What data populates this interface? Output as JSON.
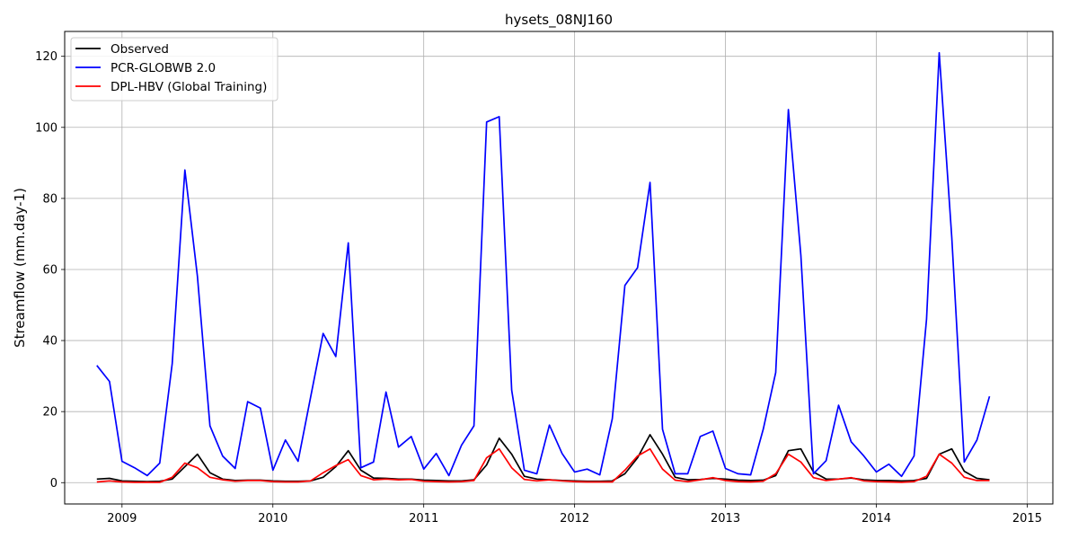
{
  "chart_data": {
    "type": "line",
    "title": "hysets_08NJ160",
    "xlabel": "",
    "ylabel": "Streamflow (mm.day-1)",
    "xlim": [
      2008.62,
      2015.17
    ],
    "ylim": [
      -6,
      127
    ],
    "x_ticks": [
      2009,
      2010,
      2011,
      2012,
      2013,
      2014,
      2015
    ],
    "y_ticks": [
      0,
      20,
      40,
      60,
      80,
      100,
      120
    ],
    "grid": true,
    "legend_position": "top-left",
    "x": [
      2008.833,
      2008.917,
      2009.0,
      2009.083,
      2009.167,
      2009.25,
      2009.333,
      2009.417,
      2009.5,
      2009.583,
      2009.667,
      2009.75,
      2009.833,
      2009.917,
      2010.0,
      2010.083,
      2010.167,
      2010.25,
      2010.333,
      2010.417,
      2010.5,
      2010.583,
      2010.667,
      2010.75,
      2010.833,
      2010.917,
      2011.0,
      2011.083,
      2011.167,
      2011.25,
      2011.333,
      2011.417,
      2011.5,
      2011.583,
      2011.667,
      2011.75,
      2011.833,
      2011.917,
      2012.0,
      2012.083,
      2012.167,
      2012.25,
      2012.333,
      2012.417,
      2012.5,
      2012.583,
      2012.667,
      2012.75,
      2012.833,
      2012.917,
      2013.0,
      2013.083,
      2013.167,
      2013.25,
      2013.333,
      2013.417,
      2013.5,
      2013.583,
      2013.667,
      2013.75,
      2013.833,
      2013.917,
      2014.0,
      2014.083,
      2014.167,
      2014.25,
      2014.333,
      2014.417,
      2014.5,
      2014.583,
      2014.667,
      2014.75
    ],
    "series": [
      {
        "name": "Observed",
        "color": "#000000",
        "values": [
          1.0,
          1.2,
          0.5,
          0.4,
          0.3,
          0.4,
          1.0,
          4.5,
          8.0,
          2.8,
          1.0,
          0.6,
          0.7,
          0.7,
          0.5,
          0.4,
          0.4,
          0.5,
          1.5,
          4.5,
          9.0,
          3.5,
          1.3,
          1.2,
          1.0,
          1.0,
          0.7,
          0.6,
          0.5,
          0.5,
          0.8,
          5.0,
          12.5,
          8.0,
          1.8,
          1.0,
          0.8,
          0.6,
          0.5,
          0.4,
          0.4,
          0.5,
          2.5,
          7.0,
          13.5,
          8.0,
          1.5,
          0.8,
          0.9,
          1.2,
          1.0,
          0.7,
          0.6,
          0.7,
          2.0,
          9.0,
          9.5,
          3.0,
          1.0,
          1.0,
          1.3,
          0.8,
          0.6,
          0.6,
          0.5,
          0.6,
          1.2,
          8.0,
          9.5,
          3.2,
          1.2,
          0.8
        ]
      },
      {
        "name": "PCR-GLOBWB 2.0",
        "color": "#0000ff",
        "values": [
          33.0,
          28.5,
          6.0,
          4.2,
          2.0,
          5.5,
          33.5,
          88.0,
          58.0,
          16.0,
          7.5,
          4.0,
          22.8,
          21.0,
          3.5,
          12.0,
          6.0,
          24.0,
          42.0,
          35.5,
          67.5,
          4.2,
          5.8,
          25.5,
          10.0,
          13.0,
          3.8,
          8.2,
          2.0,
          10.5,
          16.0,
          101.5,
          103.0,
          26.0,
          3.5,
          2.5,
          16.2,
          8.2,
          3.0,
          3.8,
          2.2,
          18.0,
          55.5,
          60.5,
          84.5,
          15.0,
          2.5,
          2.5,
          13.0,
          14.5,
          4.0,
          2.5,
          2.2,
          15.0,
          31.0,
          105.0,
          64.0,
          2.5,
          6.2,
          21.8,
          11.5,
          7.5,
          3.0,
          5.2,
          1.8,
          7.5,
          46.0,
          121.0,
          69.0,
          5.8,
          12.0,
          24.3
        ]
      },
      {
        "name": "DPL-HBV (Global Training)",
        "color": "#ff0000",
        "values": [
          0.2,
          0.5,
          0.2,
          0.1,
          0.1,
          0.1,
          1.5,
          5.5,
          4.2,
          1.5,
          0.8,
          0.4,
          0.6,
          0.6,
          0.3,
          0.2,
          0.2,
          0.5,
          2.8,
          4.8,
          6.5,
          2.0,
          0.8,
          1.0,
          0.8,
          0.9,
          0.4,
          0.3,
          0.2,
          0.3,
          0.6,
          7.0,
          9.5,
          4.2,
          0.9,
          0.5,
          0.8,
          0.5,
          0.3,
          0.2,
          0.2,
          0.2,
          3.5,
          7.5,
          9.5,
          3.8,
          0.7,
          0.3,
          0.8,
          1.4,
          0.6,
          0.3,
          0.2,
          0.4,
          2.5,
          8.0,
          5.8,
          1.4,
          0.6,
          1.0,
          1.4,
          0.5,
          0.3,
          0.2,
          0.1,
          0.3,
          1.8,
          8.0,
          5.5,
          1.5,
          0.6,
          0.6
        ]
      }
    ]
  }
}
